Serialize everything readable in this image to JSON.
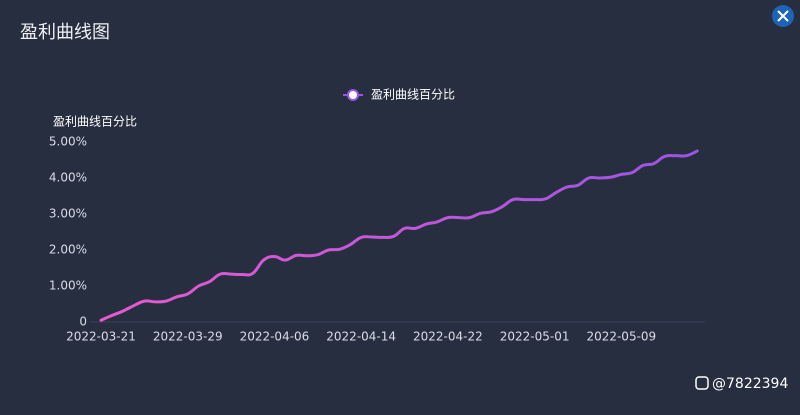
{
  "panel_title": "盈利曲线图",
  "watermark": "@7822394",
  "chart_data": {
    "type": "line",
    "y_axis_title": "盈利曲线百分比",
    "categories": [
      "2022-03-21",
      null,
      null,
      null,
      null,
      null,
      null,
      null,
      "2022-03-29",
      null,
      null,
      null,
      null,
      null,
      null,
      null,
      "2022-04-06",
      null,
      null,
      null,
      null,
      null,
      null,
      null,
      "2022-04-14",
      null,
      null,
      null,
      null,
      null,
      null,
      null,
      "2022-04-22",
      null,
      null,
      null,
      null,
      null,
      null,
      null,
      "2022-05-01",
      null,
      null,
      null,
      null,
      null,
      null,
      null,
      "2022-05-09",
      null,
      null,
      null,
      null,
      null,
      null,
      null
    ],
    "series": [
      {
        "name": "盈利曲线百分比",
        "color": [
          "#e85ad0",
          "#9a55e2"
        ],
        "values": [
          0.05,
          0.18,
          0.3,
          0.45,
          0.58,
          0.56,
          0.58,
          0.7,
          0.78,
          1.0,
          1.12,
          1.33,
          1.33,
          1.32,
          1.35,
          1.72,
          1.82,
          1.72,
          1.85,
          1.84,
          1.87,
          2.0,
          2.02,
          2.15,
          2.35,
          2.36,
          2.35,
          2.38,
          2.6,
          2.6,
          2.72,
          2.78,
          2.9,
          2.9,
          2.9,
          3.02,
          3.06,
          3.2,
          3.4,
          3.4,
          3.4,
          3.42,
          3.6,
          3.75,
          3.8,
          4.0,
          4.0,
          4.02,
          4.1,
          4.15,
          4.35,
          4.4,
          4.6,
          4.62,
          4.62,
          4.75
        ]
      }
    ],
    "ylim": [
      0,
      5
    ],
    "yticks": [
      0,
      {
        "value": 1,
        "label": "1.00%"
      },
      {
        "value": 2,
        "label": "2.00%"
      },
      {
        "value": 3,
        "label": "3.00%"
      },
      {
        "value": 4,
        "label": "4.00%"
      },
      {
        "value": 5,
        "label": "5.00%"
      }
    ],
    "grid": false,
    "legend": "top"
  }
}
